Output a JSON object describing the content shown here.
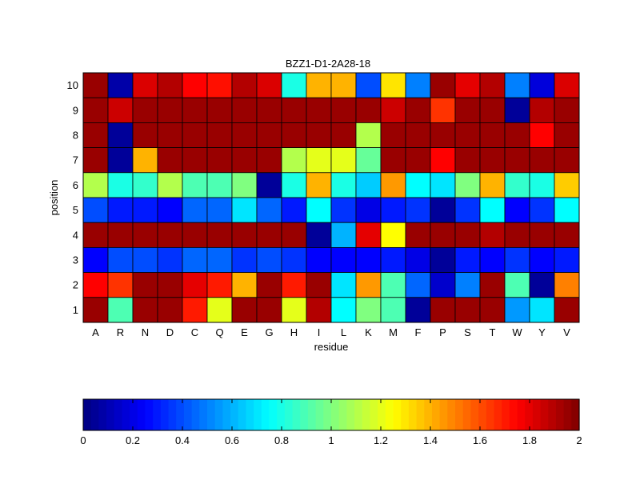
{
  "chart_data": {
    "type": "heatmap",
    "title": "BZZ1-D1-2A28-18",
    "xlabel": "residue",
    "ylabel": "position",
    "x_categories": [
      "A",
      "R",
      "N",
      "D",
      "C",
      "Q",
      "E",
      "G",
      "H",
      "I",
      "L",
      "K",
      "M",
      "F",
      "P",
      "S",
      "T",
      "W",
      "Y",
      "V"
    ],
    "y_categories": [
      "10",
      "9",
      "8",
      "7",
      "6",
      "5",
      "4",
      "3",
      "2",
      "1"
    ],
    "values": [
      [
        1.95,
        0.08,
        1.82,
        1.9,
        1.75,
        1.72,
        1.9,
        1.82,
        0.8,
        1.4,
        1.4,
        0.4,
        1.3,
        0.5,
        1.95,
        1.8,
        1.9,
        0.5,
        0.18,
        1.82
      ],
      [
        1.95,
        1.85,
        1.95,
        1.95,
        1.95,
        1.95,
        1.95,
        1.95,
        1.95,
        1.95,
        1.95,
        1.95,
        1.85,
        1.95,
        1.65,
        1.95,
        1.95,
        0.05,
        1.9,
        1.95
      ],
      [
        1.95,
        0.05,
        1.95,
        1.95,
        1.95,
        1.95,
        1.95,
        1.95,
        1.95,
        1.95,
        1.95,
        1.1,
        1.95,
        1.95,
        1.95,
        1.95,
        1.95,
        1.95,
        1.75,
        1.95
      ],
      [
        1.95,
        0.05,
        1.4,
        1.95,
        1.95,
        1.95,
        1.95,
        1.95,
        1.1,
        1.2,
        1.2,
        0.95,
        1.95,
        1.95,
        1.75,
        1.95,
        1.95,
        1.95,
        1.95,
        1.95
      ],
      [
        1.1,
        0.8,
        0.85,
        1.1,
        0.9,
        0.9,
        1.0,
        0.05,
        0.8,
        1.4,
        0.8,
        0.65,
        1.45,
        0.75,
        0.7,
        1.0,
        1.4,
        0.85,
        0.8,
        1.35
      ],
      [
        0.4,
        0.3,
        0.3,
        0.25,
        0.45,
        0.45,
        0.7,
        0.45,
        0.3,
        0.75,
        0.35,
        0.2,
        0.3,
        0.35,
        0.05,
        0.35,
        0.75,
        0.25,
        0.35,
        0.75
      ],
      [
        1.95,
        1.95,
        1.95,
        1.95,
        1.95,
        1.95,
        1.95,
        1.95,
        1.95,
        0.05,
        0.6,
        1.8,
        1.25,
        1.95,
        1.95,
        1.95,
        1.9,
        1.95,
        1.95,
        1.95
      ],
      [
        0.25,
        0.4,
        0.4,
        0.35,
        0.45,
        0.45,
        0.35,
        0.4,
        0.35,
        0.25,
        0.25,
        0.25,
        0.3,
        0.2,
        0.05,
        0.3,
        0.25,
        0.35,
        0.25,
        0.3
      ],
      [
        1.75,
        1.65,
        1.95,
        1.95,
        1.8,
        1.7,
        1.4,
        1.95,
        1.7,
        1.95,
        0.7,
        1.45,
        0.9,
        0.45,
        0.15,
        0.5,
        1.95,
        0.9,
        0.05,
        1.5
      ],
      [
        1.95,
        0.9,
        1.95,
        1.95,
        1.7,
        1.2,
        1.95,
        1.95,
        1.2,
        1.9,
        0.75,
        1.0,
        0.9,
        0.05,
        1.95,
        1.95,
        1.95,
        0.55,
        0.7,
        1.95
      ]
    ],
    "colorbar": {
      "min": 0,
      "max": 2,
      "tick_labels": [
        "0",
        "0.2",
        "0.4",
        "0.6",
        "0.8",
        "1",
        "1.2",
        "1.4",
        "1.6",
        "1.8",
        "2"
      ],
      "orientation": "horizontal",
      "placement": "bottom"
    },
    "colormap": "jet",
    "grid": false
  }
}
